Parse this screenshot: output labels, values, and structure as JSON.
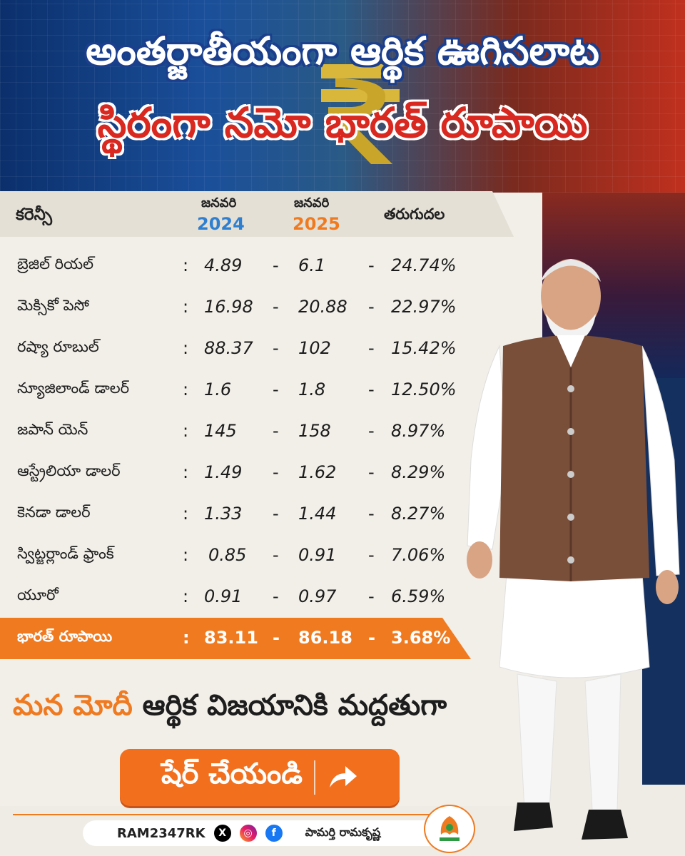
{
  "title": {
    "line1": "అంతర్జాతీయంగా ఆర్థిక ఊగిసలాట",
    "line2": "స్థిరంగా నమో భారత్ రూపాయి"
  },
  "table": {
    "headers": {
      "currency": "కరెన్సీ",
      "month1": "జనవరి",
      "year1": "2024",
      "month2": "జనవరి",
      "year2": "2025",
      "change": "తరుగుదల"
    },
    "separators": {
      "colon": ":",
      "dash": "-"
    },
    "rows": [
      {
        "name": "బ్రెజిల్ రియల్",
        "v2024": "4.89",
        "v2025": "6.1",
        "pct": "24.74%"
      },
      {
        "name": "మెక్సికో పెసో",
        "v2024": "16.98",
        "v2025": "20.88",
        "pct": "22.97%"
      },
      {
        "name": "రష్యా రూబుల్",
        "v2024": "88.37",
        "v2025": "102",
        "pct": "15.42%"
      },
      {
        "name": "న్యూజిలాండ్ డాలర్",
        "v2024": "1.6",
        "v2025": "1.8",
        "pct": "12.50%"
      },
      {
        "name": "జపాన్ యెన్",
        "v2024": "145",
        "v2025": "158",
        "pct": "8.97%"
      },
      {
        "name": "ఆస్ట్రేలియా డాలర్",
        "v2024": "1.49",
        "v2025": "1.62",
        "pct": "8.29%"
      },
      {
        "name": "కెనడా డాలర్",
        "v2024": "1.33",
        "v2025": "1.44",
        "pct": "8.27%"
      },
      {
        "name": "స్విట్జర్లాండ్ ఫ్రాంక్",
        "v2024": "0.85",
        "v2025": "0.91",
        "pct": "7.06%"
      },
      {
        "name": "యూరో",
        "v2024": "0.91",
        "v2025": "0.97",
        "pct": "6.59%"
      }
    ],
    "highlight": {
      "name": "భారత్ రూపాయి",
      "v2024": "83.11",
      "v2025": "86.18",
      "pct": "3.68%"
    }
  },
  "slogan": {
    "part1": "మన మోదీ",
    "part2": "ఆర్థిక విజయానికి మద్దతుగా"
  },
  "share": {
    "label": "షేర్ చేయండి"
  },
  "footer": {
    "handle": "RAM2347RK",
    "name": "పామర్తి రామకృష్ణ",
    "x": "X",
    "fb": "f"
  },
  "colors": {
    "accent": "#f07a20",
    "title_red": "#d8281f",
    "title_blue": "#1b3f8c",
    "year2024": "#2f7fd0",
    "year2025": "#f07a20"
  }
}
